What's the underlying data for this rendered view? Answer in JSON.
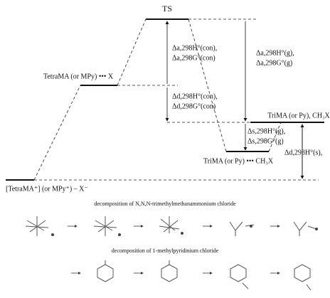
{
  "levels": {
    "ts": "TS",
    "tetra_complex": "TetraMA (or MPy) ••• X",
    "ion_pair": "[TetraMA⁺] (or MPy⁺) – X⁻",
    "tri_complex": "TriMA (or Py) ••• CH₃X",
    "tri_separated": "TriMA (or Py), CH₃X"
  },
  "arrows": {
    "act_con": [
      "Δa,298H°(con),",
      "Δa,298G°(con)"
    ],
    "dec_con": [
      "Δd,298H°(con),",
      "Δd,298G°(con)"
    ],
    "act_gas": [
      "Δa,298H°(g),",
      "Δa,298G°(g)"
    ],
    "sep_gas": [
      "Δs,298H°(g),",
      "Δs,298G°(g)"
    ],
    "dec_sol": "Δd,298H°(s),"
  },
  "captions": [
    "decomposition of N,N,N-trimethylmethanammonium chloride",
    "decomposition of 1-methylpyridinium chloride"
  ]
}
